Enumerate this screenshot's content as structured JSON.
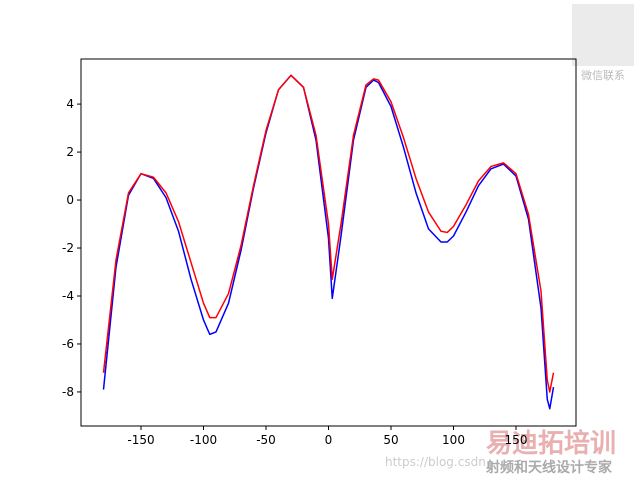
{
  "chart_data": {
    "type": "line",
    "x": [
      -180,
      -170,
      -160,
      -150,
      -140,
      -130,
      -120,
      -110,
      -100,
      -95,
      -90,
      -80,
      -70,
      -60,
      -50,
      -40,
      -30,
      -20,
      -10,
      0,
      3,
      10,
      20,
      30,
      36,
      40,
      50,
      60,
      70,
      80,
      90,
      95,
      100,
      110,
      120,
      130,
      140,
      150,
      160,
      170,
      175,
      177,
      180
    ],
    "series": [
      {
        "color": "#0000ff",
        "values": [
          -7.9,
          -2.8,
          0.2,
          1.1,
          0.9,
          0.1,
          -1.3,
          -3.3,
          -5.0,
          -5.6,
          -5.5,
          -4.3,
          -2.1,
          0.5,
          2.8,
          4.6,
          5.2,
          4.7,
          2.5,
          -1.6,
          -4.1,
          -1.5,
          2.5,
          4.7,
          5.0,
          4.9,
          3.9,
          2.2,
          0.3,
          -1.2,
          -1.75,
          -1.75,
          -1.5,
          -0.5,
          0.6,
          1.3,
          1.5,
          1.0,
          -0.8,
          -4.5,
          -8.3,
          -8.7,
          -7.8
        ]
      },
      {
        "color": "#ff0000",
        "values": [
          -7.2,
          -2.5,
          0.3,
          1.1,
          0.95,
          0.3,
          -0.9,
          -2.6,
          -4.3,
          -4.9,
          -4.9,
          -3.9,
          -1.9,
          0.6,
          2.9,
          4.6,
          5.2,
          4.7,
          2.7,
          -1.0,
          -3.3,
          -1.0,
          2.7,
          4.8,
          5.05,
          5.0,
          4.1,
          2.6,
          0.9,
          -0.5,
          -1.3,
          -1.35,
          -1.1,
          -0.2,
          0.8,
          1.4,
          1.55,
          1.1,
          -0.6,
          -3.8,
          -7.5,
          -8.0,
          -7.2
        ]
      }
    ],
    "xlim": [
      -198,
      198
    ],
    "xticks": [
      -150,
      -100,
      -50,
      0,
      50,
      100,
      150
    ],
    "ylim": [
      -9.42,
      5.88
    ],
    "yticks": [
      -8,
      -6,
      -4,
      -2,
      0,
      2,
      4
    ]
  },
  "watermarks": [
    "微信联系",
    "易迪拓培训",
    "射频和天线设计专家",
    "https://blog.csdn"
  ]
}
